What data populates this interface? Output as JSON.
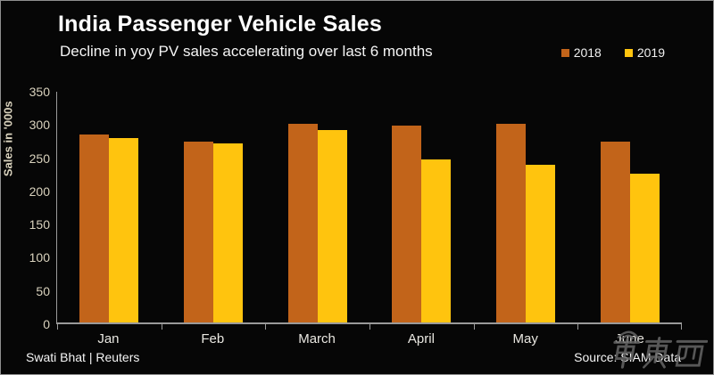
{
  "header": {
    "title": "India Passenger Vehicle Sales",
    "subtitle": "Decline in yoy PV sales accelerating over last 6 months"
  },
  "chart_data": {
    "type": "bar",
    "title": "India Passenger Vehicle Sales",
    "subtitle": "Decline in yoy PV sales accelerating over last 6 months",
    "categories": [
      "Jan",
      "Feb",
      "March",
      "April",
      "May",
      "June"
    ],
    "series": [
      {
        "name": "2018",
        "color": "#c2641a",
        "values": [
          285,
          275,
          301,
          298,
          301,
          274
        ]
      },
      {
        "name": "2019",
        "color": "#ffc40e",
        "values": [
          280,
          272,
          292,
          247,
          239,
          226
        ]
      }
    ],
    "xlabel": "",
    "ylabel": "Sales in '000s",
    "ylim": [
      0,
      350
    ],
    "ytick_step": 50,
    "grid": false,
    "legend_position": "top-right",
    "background": "#060606",
    "axis_color": "#9a9a9a",
    "tick_label_color": "#d9d2bd"
  },
  "footer": {
    "credit": "Swati Bhat | Reuters",
    "source": "Source: SIAM Data"
  },
  "watermark": {
    "text": "車東西"
  }
}
